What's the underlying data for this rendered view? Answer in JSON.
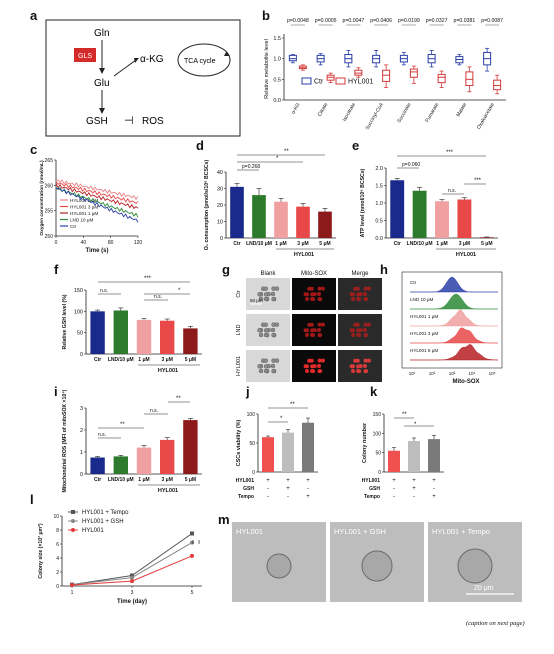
{
  "panel_labels": {
    "a": "a",
    "b": "b",
    "c": "c",
    "d": "d",
    "e": "e",
    "f": "f",
    "g": "g",
    "h": "h",
    "i": "i",
    "j": "j",
    "k": "k",
    "l": "l",
    "m": "m"
  },
  "panel_a": {
    "gln": "Gln",
    "gls": "GLS",
    "akg": "α-KG",
    "tca": "TCA cycle",
    "glu": "Glu",
    "gsh": "GSH",
    "ros": "ROS",
    "inhibit": "⊣",
    "gls_color": "#d42a2a"
  },
  "panel_b": {
    "ylabel": "Relative metabolite level",
    "legend": [
      "Ctr",
      "HYL001"
    ],
    "colors": {
      "ctr": "#2b3fa8",
      "hyl": "#d33a3a"
    },
    "categories": [
      "α-KG",
      "Citrate",
      "Isocitrate",
      "Succinyl-CoA",
      "Succinate",
      "Fumarate",
      "Malate",
      "Oxaloacetate"
    ],
    "pvalues": [
      "p=0.0048",
      "p=0.0005",
      "p=0.0047",
      "p=0.0406",
      "p=0.0199",
      "p=0.0327",
      "p=0.0381",
      "p=0.0087"
    ],
    "ctr_boxes": [
      [
        0.9,
        0.95,
        1.0,
        1.08,
        1.1
      ],
      [
        0.85,
        0.92,
        1.0,
        1.08,
        1.12
      ],
      [
        0.8,
        0.9,
        1.0,
        1.1,
        1.2
      ],
      [
        0.8,
        0.9,
        1.0,
        1.08,
        1.2
      ],
      [
        0.85,
        0.92,
        1.0,
        1.08,
        1.15
      ],
      [
        0.8,
        0.9,
        1.0,
        1.1,
        1.2
      ],
      [
        0.85,
        0.9,
        0.98,
        1.05,
        1.1
      ],
      [
        0.7,
        0.85,
        1.0,
        1.15,
        1.25
      ]
    ],
    "hyl_boxes": [
      [
        0.72,
        0.76,
        0.78,
        0.82,
        0.85
      ],
      [
        0.42,
        0.48,
        0.55,
        0.6,
        0.65
      ],
      [
        0.55,
        0.6,
        0.65,
        0.72,
        0.78
      ],
      [
        0.3,
        0.45,
        0.6,
        0.72,
        0.85
      ],
      [
        0.4,
        0.55,
        0.68,
        0.75,
        0.82
      ],
      [
        0.3,
        0.42,
        0.55,
        0.62,
        0.7
      ],
      [
        0.2,
        0.35,
        0.5,
        0.68,
        0.8
      ],
      [
        0.15,
        0.25,
        0.35,
        0.48,
        0.6
      ]
    ],
    "yticks": [
      "0.0",
      "0.5",
      "1.0",
      "1.5"
    ],
    "ylim": [
      0,
      1.5
    ]
  },
  "panel_c": {
    "ylabel": "Oxygen concentration (nmol/mL)",
    "xlabel": "Time (s)",
    "xticks": [
      "0",
      "40",
      "80",
      "120"
    ],
    "yticks": [
      "250",
      "255",
      "260",
      "265"
    ],
    "legend": [
      {
        "name": "HYL001 5 μM",
        "color": "#e8868a"
      },
      {
        "name": "HYL001 3 μM",
        "color": "#e84848"
      },
      {
        "name": "HYL001 1 μM",
        "color": "#b51e22"
      },
      {
        "name": "LND 10 μM",
        "color": "#2c8a3a"
      },
      {
        "name": "Ctr",
        "color": "#2b3fa8"
      }
    ],
    "series_start": [
      261,
      260.5,
      260,
      259.5,
      259.5
    ],
    "series_end": [
      257.5,
      256.5,
      255.5,
      254,
      253
    ]
  },
  "panel_d": {
    "ylabel": "O₂ consumption (pmol/s/10⁶ BCSCs)",
    "categories": [
      "Ctr",
      "LND/10 μM",
      "1 μM",
      "3 μM",
      "5 μM"
    ],
    "group_label": "HYL001",
    "values": [
      31,
      26,
      22,
      19,
      16
    ],
    "errors": [
      2,
      4,
      2,
      2,
      2
    ],
    "colors": [
      "#1a2a8c",
      "#2c7a2c",
      "#f0a0a0",
      "#e84848",
      "#8c1a1a"
    ],
    "ylim": [
      0,
      40
    ],
    "yticks": [
      "0",
      "10",
      "20",
      "30",
      "40"
    ],
    "annotations": [
      "p=0.268",
      "*",
      "**"
    ]
  },
  "panel_e": {
    "ylabel": "ATP level (nmol/10⁶ BCSCs)",
    "categories": [
      "Ctr",
      "LND/10 μM",
      "1 μM",
      "3 μM",
      "5 μM"
    ],
    "group_label": "HYL001",
    "values": [
      1.65,
      1.35,
      1.05,
      1.1,
      0.02
    ],
    "errors": [
      0.05,
      0.1,
      0.05,
      0.05,
      0.01
    ],
    "colors": [
      "#1a2a8c",
      "#2c7a2c",
      "#f0a0a0",
      "#e84848",
      "#8c1a1a"
    ],
    "ylim": [
      0,
      2.0
    ],
    "yticks": [
      "0.0",
      "0.5",
      "1.0",
      "1.5",
      "2.0"
    ],
    "annotations": [
      "p=0.060",
      "***",
      "n.s.",
      "***"
    ]
  },
  "panel_f": {
    "ylabel": "Relative GSH level (%)",
    "categories": [
      "Ctr",
      "LND/10 μM",
      "1 μM",
      "3 μM",
      "5 μM"
    ],
    "group_label": "HYL001",
    "values": [
      100,
      102,
      80,
      78,
      60
    ],
    "errors": [
      3,
      6,
      3,
      4,
      5
    ],
    "colors": [
      "#1a2a8c",
      "#2c7a2c",
      "#f0a0a0",
      "#e84848",
      "#8c1a1a"
    ],
    "ylim": [
      0,
      150
    ],
    "yticks": [
      "0",
      "50",
      "100",
      "150"
    ],
    "annotations": [
      "n.s.",
      "***",
      "n.s.",
      "*"
    ]
  },
  "panel_g": {
    "cols": [
      "Blank",
      "Mito-SOX",
      "Merge"
    ],
    "rows": [
      "Ctr",
      "LND",
      "HYL001"
    ],
    "scale": "50 μm"
  },
  "panel_h": {
    "xlabel": "Mito-SOX",
    "rows": [
      "Ctr",
      "LND 10 μM",
      "HYL001 1 μM",
      "HYL001 3 μM",
      "HYL001 5 μM"
    ],
    "colors": [
      "#2b3fa8",
      "#2c8a3a",
      "#f0a0a0",
      "#e84848",
      "#b51e22"
    ],
    "xticks": [
      "10¹",
      "10²",
      "10³",
      "10⁴",
      "10⁵"
    ]
  },
  "panel_i": {
    "ylabel": "Mitochondrial ROS (MFI of mitoSOX ×10⁴)",
    "categories": [
      "Ctr",
      "LND/10 μM",
      "1 μM",
      "3 μM",
      "5 μM"
    ],
    "group_label": "HYL001",
    "values": [
      0.75,
      0.8,
      1.2,
      1.55,
      2.45
    ],
    "errors": [
      0.05,
      0.05,
      0.1,
      0.1,
      0.08
    ],
    "colors": [
      "#1a2a8c",
      "#2c7a2c",
      "#f0a0a0",
      "#e84848",
      "#8c1a1a"
    ],
    "ylim": [
      0,
      3
    ],
    "yticks": [
      "0",
      "1",
      "2",
      "3"
    ],
    "annotations": [
      "n.s.",
      "**",
      "n.s.",
      "**"
    ]
  },
  "panel_j": {
    "ylabel": "CSCs viability (%)",
    "values": [
      60,
      68,
      85
    ],
    "errors": [
      2,
      5,
      8
    ],
    "colors": [
      "#f05050",
      "#bdbdbd",
      "#7a7a7a"
    ],
    "ylim": [
      0,
      100
    ],
    "yticks": [
      "0",
      "50",
      "100"
    ],
    "rows": [
      "HYL001",
      "GSH",
      "Tempo"
    ],
    "signs": [
      [
        "+",
        "+",
        "+"
      ],
      [
        "-",
        "+",
        "-"
      ],
      [
        "-",
        "-",
        "+"
      ]
    ],
    "annotations": [
      "*",
      "**"
    ]
  },
  "panel_k": {
    "ylabel": "Colony number",
    "values": [
      55,
      80,
      85
    ],
    "errors": [
      8,
      8,
      10
    ],
    "colors": [
      "#f05050",
      "#bdbdbd",
      "#7a7a7a"
    ],
    "ylim": [
      0,
      150
    ],
    "yticks": [
      "0",
      "50",
      "100",
      "150"
    ],
    "rows": [
      "HYL001",
      "GSH",
      "Tempo"
    ],
    "signs": [
      [
        "+",
        "+",
        "+"
      ],
      [
        "-",
        "+",
        "-"
      ],
      [
        "-",
        "-",
        "+"
      ]
    ],
    "annotations": [
      "**",
      "*"
    ]
  },
  "panel_l": {
    "ylabel": "Colony size (×10³ μm²)",
    "xlabel": "Time (day)",
    "xticks": [
      "1",
      "3",
      "5"
    ],
    "yticks": [
      "0",
      "2",
      "4",
      "6",
      "8",
      "10"
    ],
    "ylim": [
      0,
      10
    ],
    "x": [
      1,
      3,
      5
    ],
    "series": [
      {
        "name": "HYL001 + Tempo",
        "color": "#555555",
        "marker": "square",
        "values": [
          0.2,
          1.5,
          7.5
        ]
      },
      {
        "name": "HYL001 + GSH",
        "color": "#888888",
        "marker": "circle",
        "values": [
          0.2,
          1.2,
          6.2
        ]
      },
      {
        "name": "HYL001",
        "color": "#e23a3a",
        "marker": "circle",
        "values": [
          0.15,
          0.7,
          4.3
        ]
      }
    ],
    "annotations": [
      "**",
      "**"
    ]
  },
  "panel_m": {
    "labels": [
      "HYL001",
      "HYL001 + GSH",
      "HYL001 + Tempo"
    ],
    "scale": "20 μm"
  },
  "caption": "(caption on next page)"
}
